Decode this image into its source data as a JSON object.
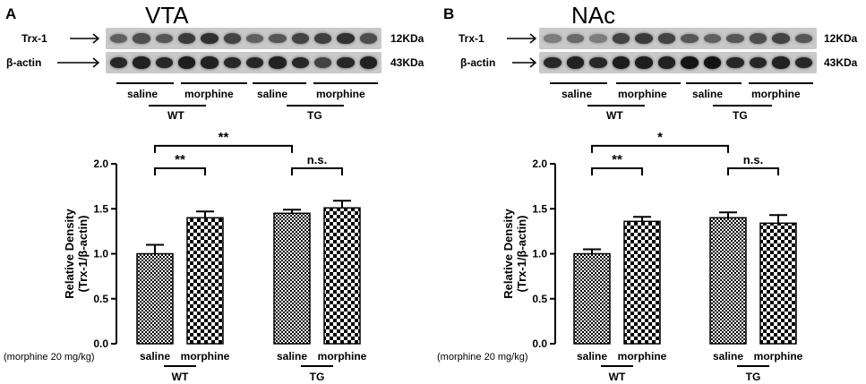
{
  "colors": {
    "bar_stroke": "#000000",
    "pattern_dark": "#000000",
    "pattern_light": "#ffffff",
    "blot_bg": "#c9c9c9",
    "band": "#1a1a1a"
  },
  "panels": [
    {
      "letter": "A",
      "region": "VTA",
      "blot": {
        "rows": [
          {
            "label": "Trx-1",
            "kda": "12KDa",
            "intensity": [
              0.55,
              0.65,
              0.6,
              0.75,
              0.8,
              0.7,
              0.55,
              0.6,
              0.7,
              0.72,
              0.8,
              0.65
            ]
          },
          {
            "label": "β-actin",
            "kda": "43KDa",
            "intensity": [
              0.85,
              0.88,
              0.85,
              0.9,
              0.88,
              0.85,
              0.85,
              0.88,
              0.85,
              0.7,
              0.85,
              0.88
            ]
          }
        ],
        "conditions": [
          "saline",
          "morphine",
          "saline",
          "morphine"
        ],
        "genotypes": [
          "WT",
          "TG"
        ]
      },
      "chart_data": {
        "type": "bar",
        "categories": [
          "saline",
          "morphine",
          "saline",
          "morphine"
        ],
        "groups": [
          "WT",
          "WT",
          "TG",
          "TG"
        ],
        "values": [
          1.0,
          1.4,
          1.45,
          1.51
        ],
        "errors": [
          0.1,
          0.07,
          0.04,
          0.08
        ],
        "patterns": [
          "fine",
          "coarse",
          "fine",
          "coarse"
        ],
        "ylabel_line1": "Relative Density",
        "ylabel_line2": "(Trx-1/β-actin)",
        "ylim": [
          0,
          2.0
        ],
        "yticks": [
          "0.0",
          "0.5",
          "1.0",
          "1.5",
          "2.0"
        ],
        "x_prefix": "(morphine 20 mg/kg)",
        "group_labels": [
          "WT",
          "TG"
        ],
        "significance": [
          {
            "from": 0,
            "to": 1,
            "label": "**",
            "level": 1.95
          },
          {
            "from": 2,
            "to": 3,
            "label": "n.s.",
            "level": 1.95
          },
          {
            "from": 0,
            "to": 2,
            "label": "**",
            "level": 2.2
          }
        ]
      }
    },
    {
      "letter": "B",
      "region": "NAc",
      "blot": {
        "rows": [
          {
            "label": "Trx-1",
            "kda": "12KDa",
            "intensity": [
              0.4,
              0.5,
              0.4,
              0.7,
              0.75,
              0.7,
              0.6,
              0.55,
              0.6,
              0.65,
              0.7,
              0.6
            ]
          },
          {
            "label": "β-actin",
            "kda": "43KDa",
            "intensity": [
              0.85,
              0.88,
              0.85,
              0.9,
              0.9,
              0.88,
              0.95,
              0.95,
              0.85,
              0.85,
              0.88,
              0.85
            ]
          }
        ],
        "conditions": [
          "saline",
          "morphine",
          "saline",
          "morphine"
        ],
        "genotypes": [
          "WT",
          "TG"
        ]
      },
      "chart_data": {
        "type": "bar",
        "categories": [
          "saline",
          "morphine",
          "saline",
          "morphine"
        ],
        "groups": [
          "WT",
          "WT",
          "TG",
          "TG"
        ],
        "values": [
          1.0,
          1.36,
          1.4,
          1.34
        ],
        "errors": [
          0.05,
          0.05,
          0.06,
          0.09
        ],
        "patterns": [
          "fine",
          "coarse",
          "fine",
          "coarse"
        ],
        "ylabel_line1": "Relative Density",
        "ylabel_line2": "(Trx-1/β-actin)",
        "ylim": [
          0,
          2.0
        ],
        "yticks": [
          "0.0",
          "0.5",
          "1.0",
          "1.5",
          "2.0"
        ],
        "x_prefix": "(morphine 20 mg/kg)",
        "group_labels": [
          "WT",
          "TG"
        ],
        "significance": [
          {
            "from": 0,
            "to": 1,
            "label": "**",
            "level": 1.95
          },
          {
            "from": 2,
            "to": 3,
            "label": "n.s.",
            "level": 1.95
          },
          {
            "from": 0,
            "to": 2,
            "label": "*",
            "level": 2.2
          }
        ]
      }
    }
  ]
}
